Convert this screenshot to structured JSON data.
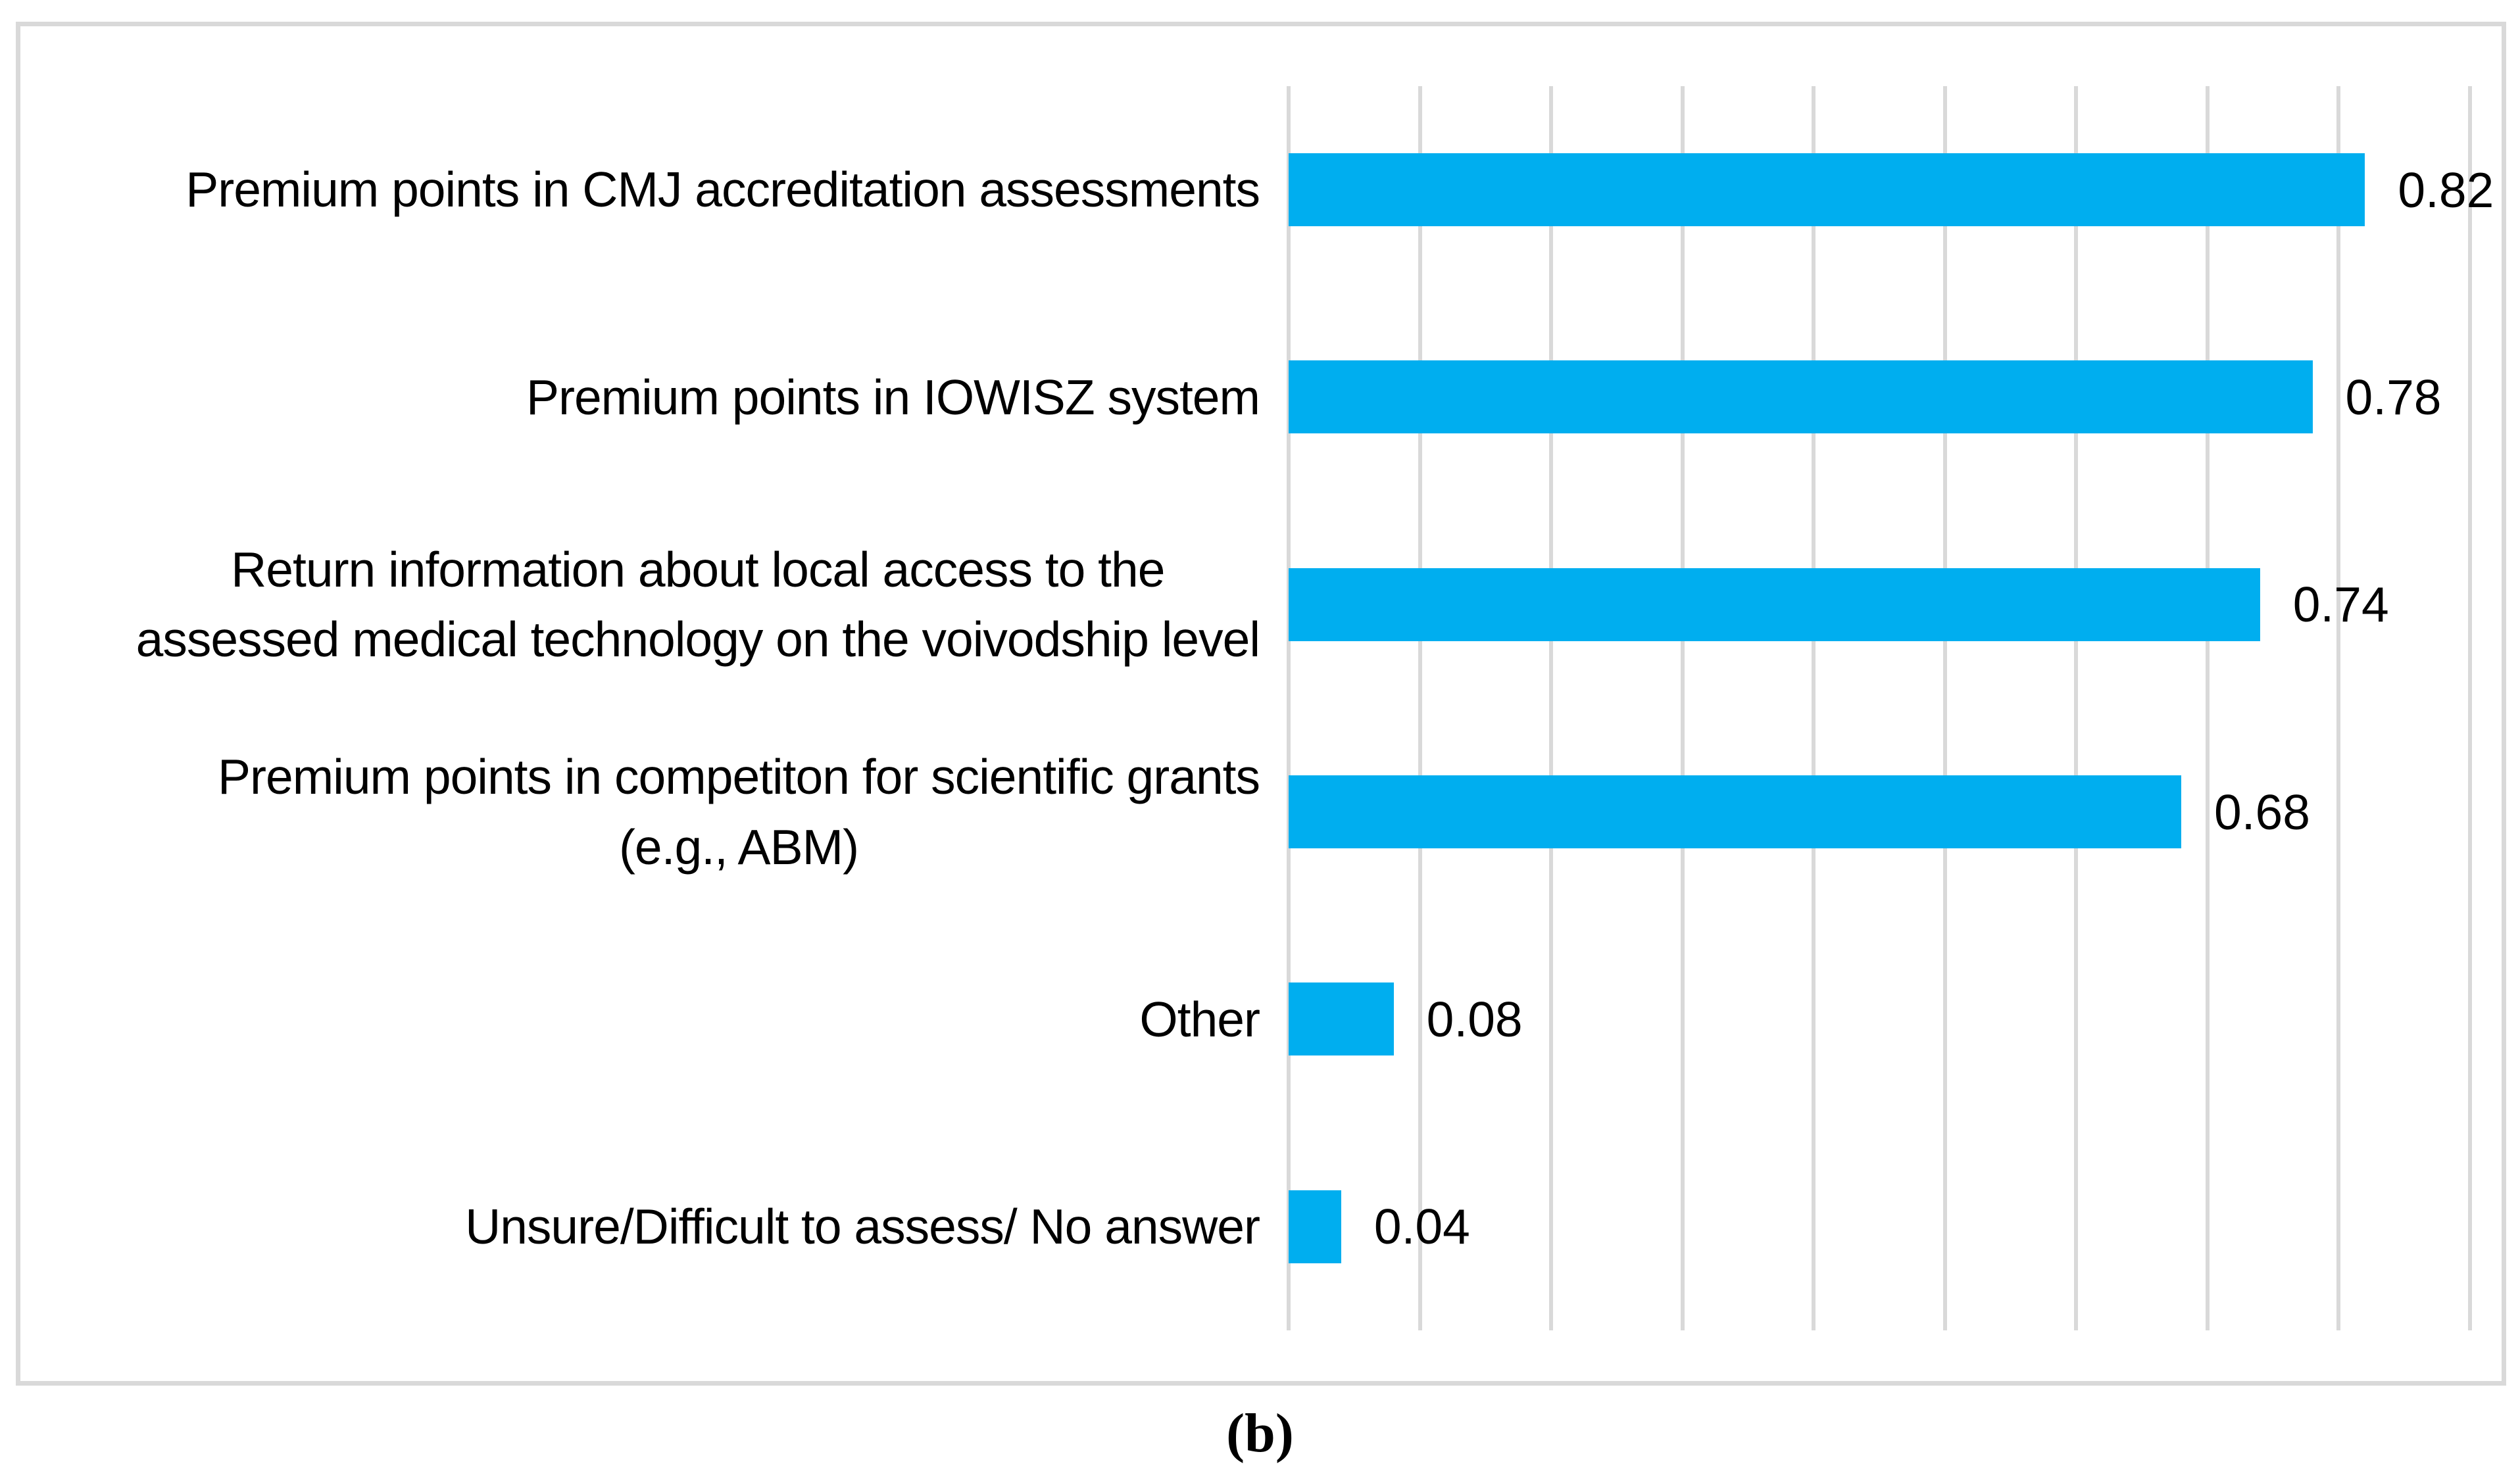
{
  "figure": {
    "caption": "(b)"
  },
  "chart_data": {
    "type": "bar",
    "orientation": "horizontal",
    "title": "",
    "xlabel": "",
    "ylabel": "",
    "categories": [
      "Premium points in CMJ accreditation assessments",
      "Premium points in IOWISZ system",
      "Return information about local access to the\nassessed medical technology on the voivodship level",
      "Premium points in competiton for scientific grants\n(e.g., ABM)",
      "Other",
      "Unsure/Difficult to assess/ No answer"
    ],
    "values": [
      0.82,
      0.78,
      0.74,
      0.68,
      0.08,
      0.04
    ],
    "value_labels": [
      "0.82",
      "0.78",
      "0.74",
      "0.68",
      "0.08",
      "0.04"
    ],
    "xlim": [
      0,
      0.9
    ],
    "gridline_step": 0.1,
    "grid": "vertical-gridlines-only",
    "legend": "none",
    "colors": {
      "bar": "#00AEEF",
      "gridline": "#D9D9D9",
      "frame": "#D9D9D9",
      "text": "#000000",
      "background": "#FFFFFF"
    }
  }
}
